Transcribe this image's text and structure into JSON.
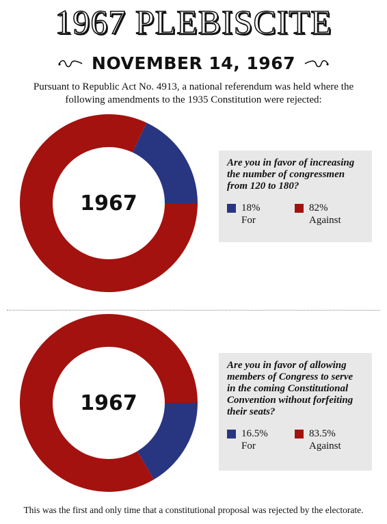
{
  "title": "1967 PLEBISCITE",
  "date": "NOVEMBER 14, 1967",
  "intro": "Pursuant to Republic Act No. 4913, a national referendum was held where the following amendments to the 1935 Constitution were rejected:",
  "colors": {
    "for": "#283581",
    "against": "#a3120f",
    "panel": "#e8e8e8"
  },
  "questions": [
    {
      "question": "Are you in favor of increasing the number of congressmen from 120 to 180?",
      "center_label": "1967",
      "for_pct": "18%",
      "for_label": "For",
      "against_pct": "82%",
      "against_label": "Against"
    },
    {
      "question": "Are you in favor of allowing members of Congress to serve in the coming Constitutional Convention without forfeiting their seats?",
      "center_label": "1967",
      "for_pct": "16.5%",
      "for_label": "For",
      "against_pct": "83.5%",
      "against_label": "Against"
    }
  ],
  "footer": "This was the first and only time that a constitutional proposal was rejected by the electorate.",
  "chart_data": [
    {
      "type": "pie",
      "title": "Are you in favor of increasing the number of congressmen from 120 to 180?",
      "categories": [
        "For",
        "Against"
      ],
      "values": [
        18,
        82
      ],
      "colors": [
        "#283581",
        "#a3120f"
      ]
    },
    {
      "type": "pie",
      "title": "Are you in favor of allowing members of Congress to serve in the coming Constitutional Convention without forfeiting their seats?",
      "categories": [
        "For",
        "Against"
      ],
      "values": [
        16.5,
        83.5
      ],
      "colors": [
        "#283581",
        "#a3120f"
      ]
    }
  ]
}
